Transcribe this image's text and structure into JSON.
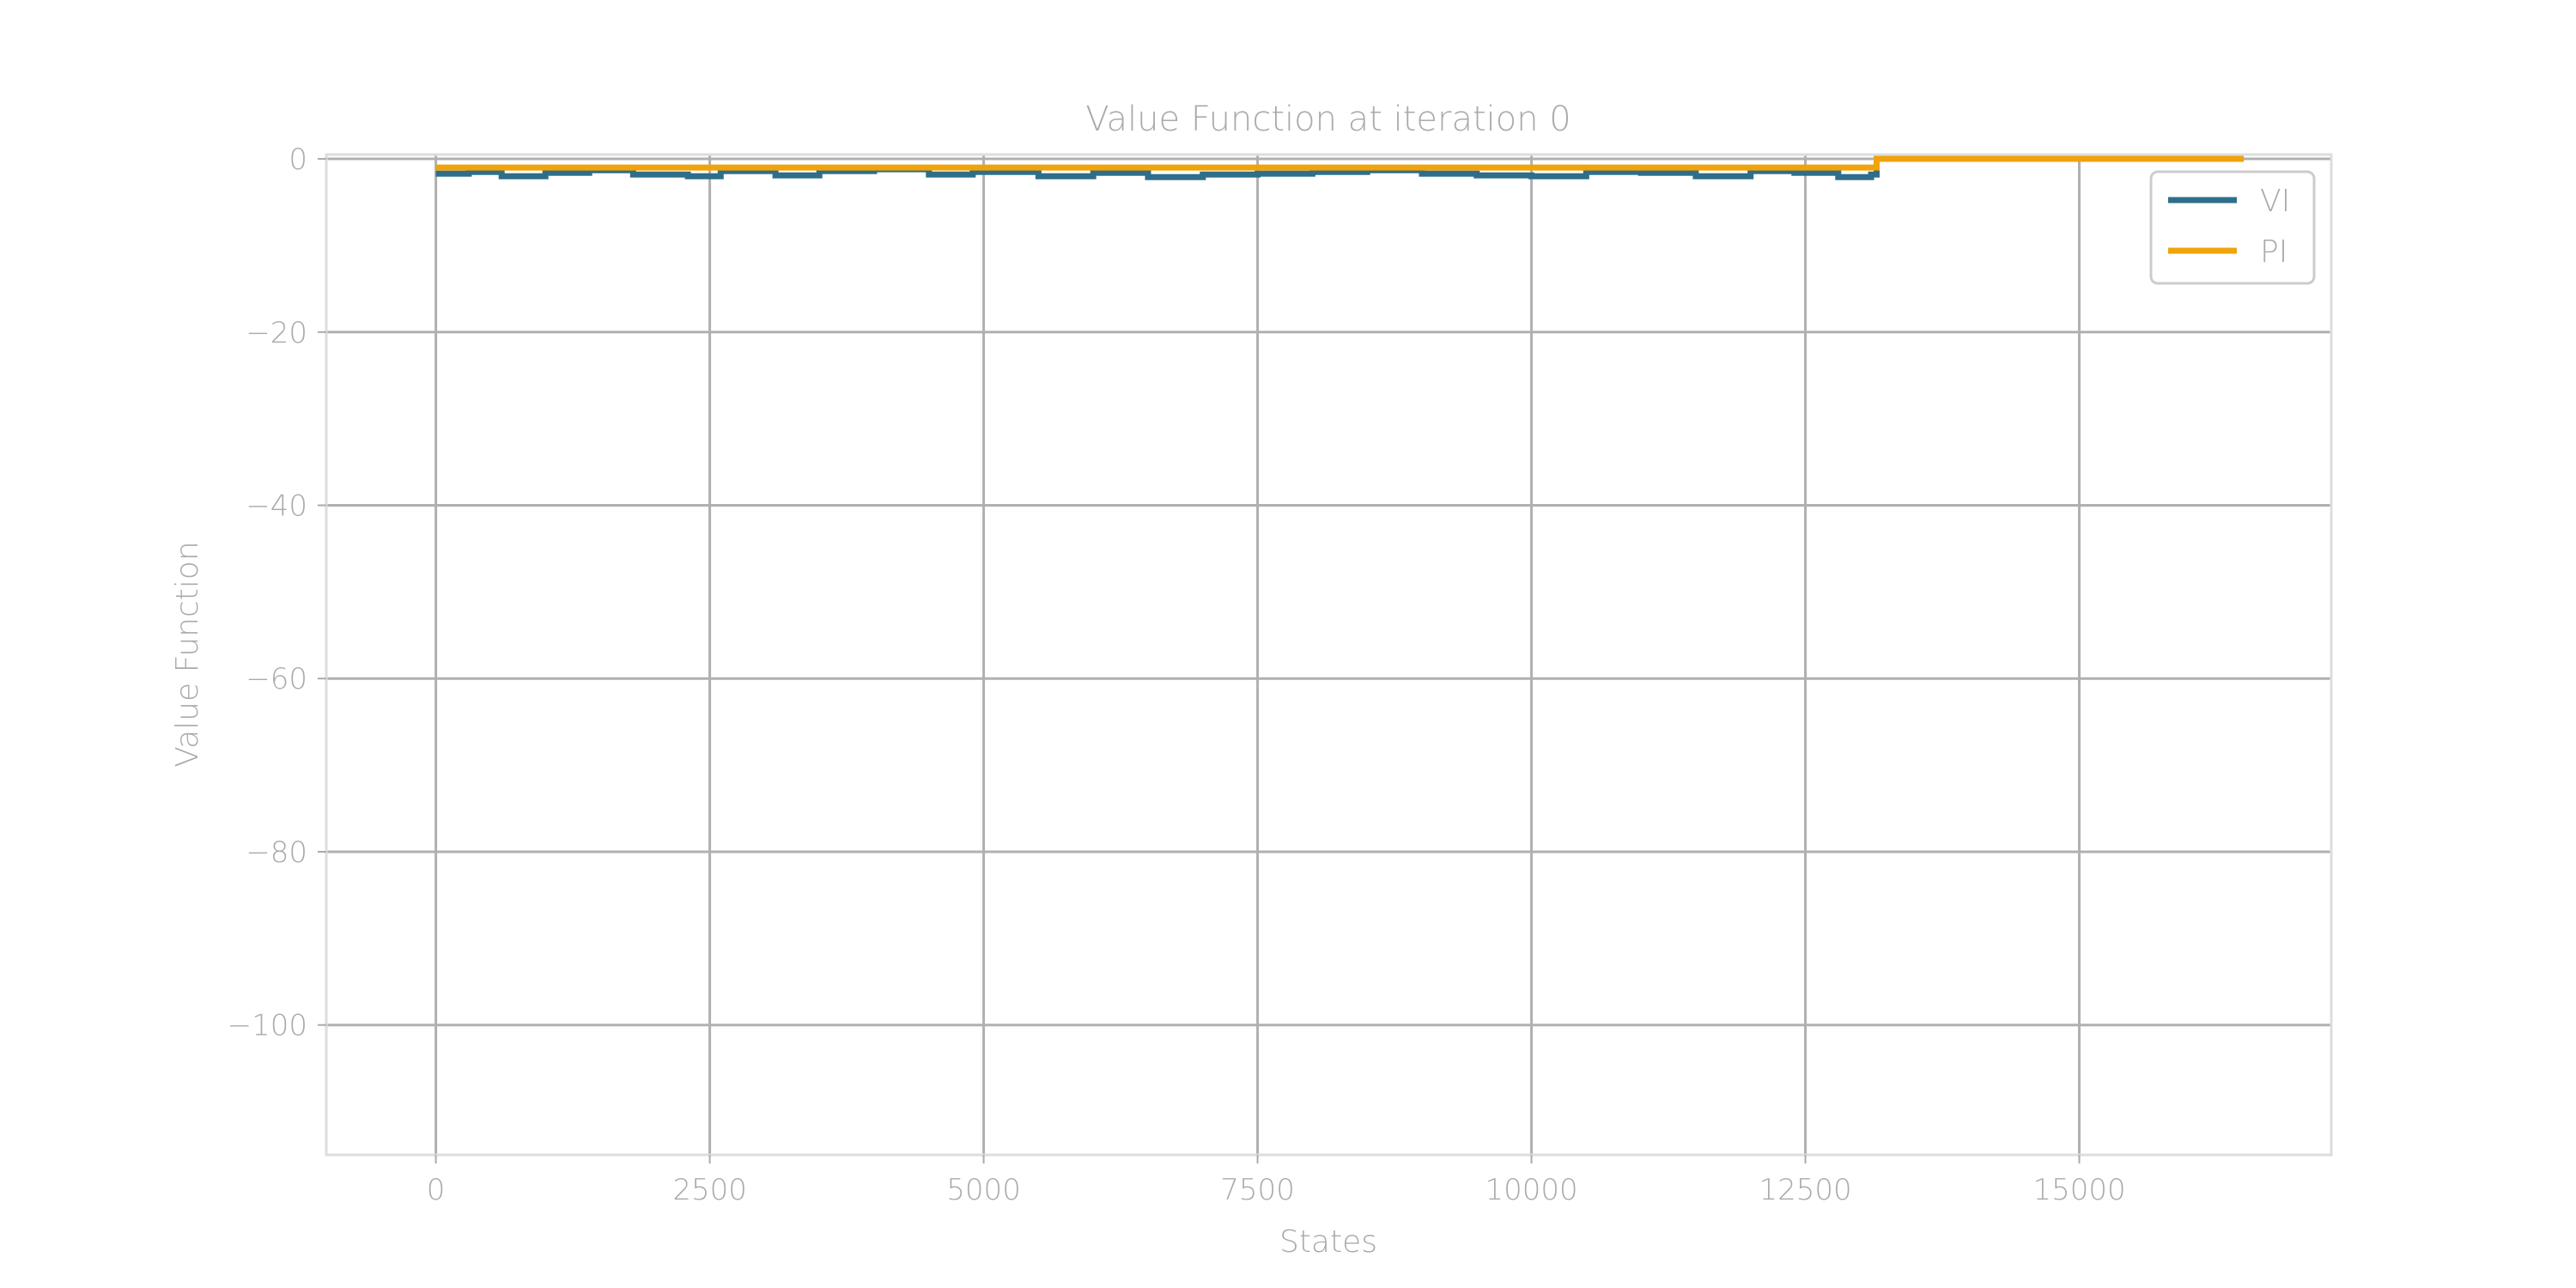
{
  "chart_data": {
    "type": "line",
    "title": "Value Function at iteration 0",
    "xlabel": "States",
    "ylabel": "Value Function",
    "xlim": [
      -1000,
      17300
    ],
    "ylim": [
      -115,
      0.5
    ],
    "xticks": [
      0,
      2500,
      5000,
      7500,
      10000,
      12500,
      15000
    ],
    "xtick_labels": [
      "0",
      "2500",
      "5000",
      "7500",
      "10000",
      "12500",
      "15000"
    ],
    "yticks": [
      0,
      -20,
      -40,
      -60,
      -80,
      -100
    ],
    "ytick_labels": [
      "0",
      "−20",
      "−40",
      "−60",
      "−80",
      "−100"
    ],
    "grid": true,
    "legend_position": "top-right",
    "series": [
      {
        "name": "VI",
        "color": "#2e6e8a",
        "x": [
          0,
          300,
          600,
          1000,
          1400,
          1800,
          2300,
          2600,
          3100,
          3500,
          4000,
          4500,
          4900,
          5500,
          6000,
          6500,
          7000,
          7500,
          8000,
          8500,
          9000,
          9500,
          10000,
          10500,
          11000,
          11500,
          12000,
          12400,
          12800,
          13100,
          13150,
          16500
        ],
        "y": [
          -1.7,
          -1.5,
          -2.0,
          -1.6,
          -1.3,
          -1.8,
          -2.0,
          -1.4,
          -1.9,
          -1.4,
          -1.2,
          -1.8,
          -1.5,
          -2.0,
          -1.6,
          -2.1,
          -1.8,
          -1.7,
          -1.5,
          -1.3,
          -1.7,
          -1.9,
          -2.0,
          -1.5,
          -1.6,
          -2.0,
          -1.4,
          -1.6,
          -2.1,
          -1.8,
          0,
          0
        ]
      },
      {
        "name": "PI",
        "color": "#f0a30a",
        "x": [
          0,
          1000,
          2000,
          3000,
          4000,
          5000,
          6000,
          7000,
          8000,
          9000,
          10000,
          11000,
          12000,
          13100,
          13150,
          16500
        ],
        "y": [
          -1.0,
          -1.0,
          -1.0,
          -1.0,
          -1.0,
          -1.0,
          -1.0,
          -1.0,
          -1.0,
          -1.0,
          -1.0,
          -1.0,
          -1.0,
          -1.0,
          0,
          0
        ]
      }
    ]
  }
}
